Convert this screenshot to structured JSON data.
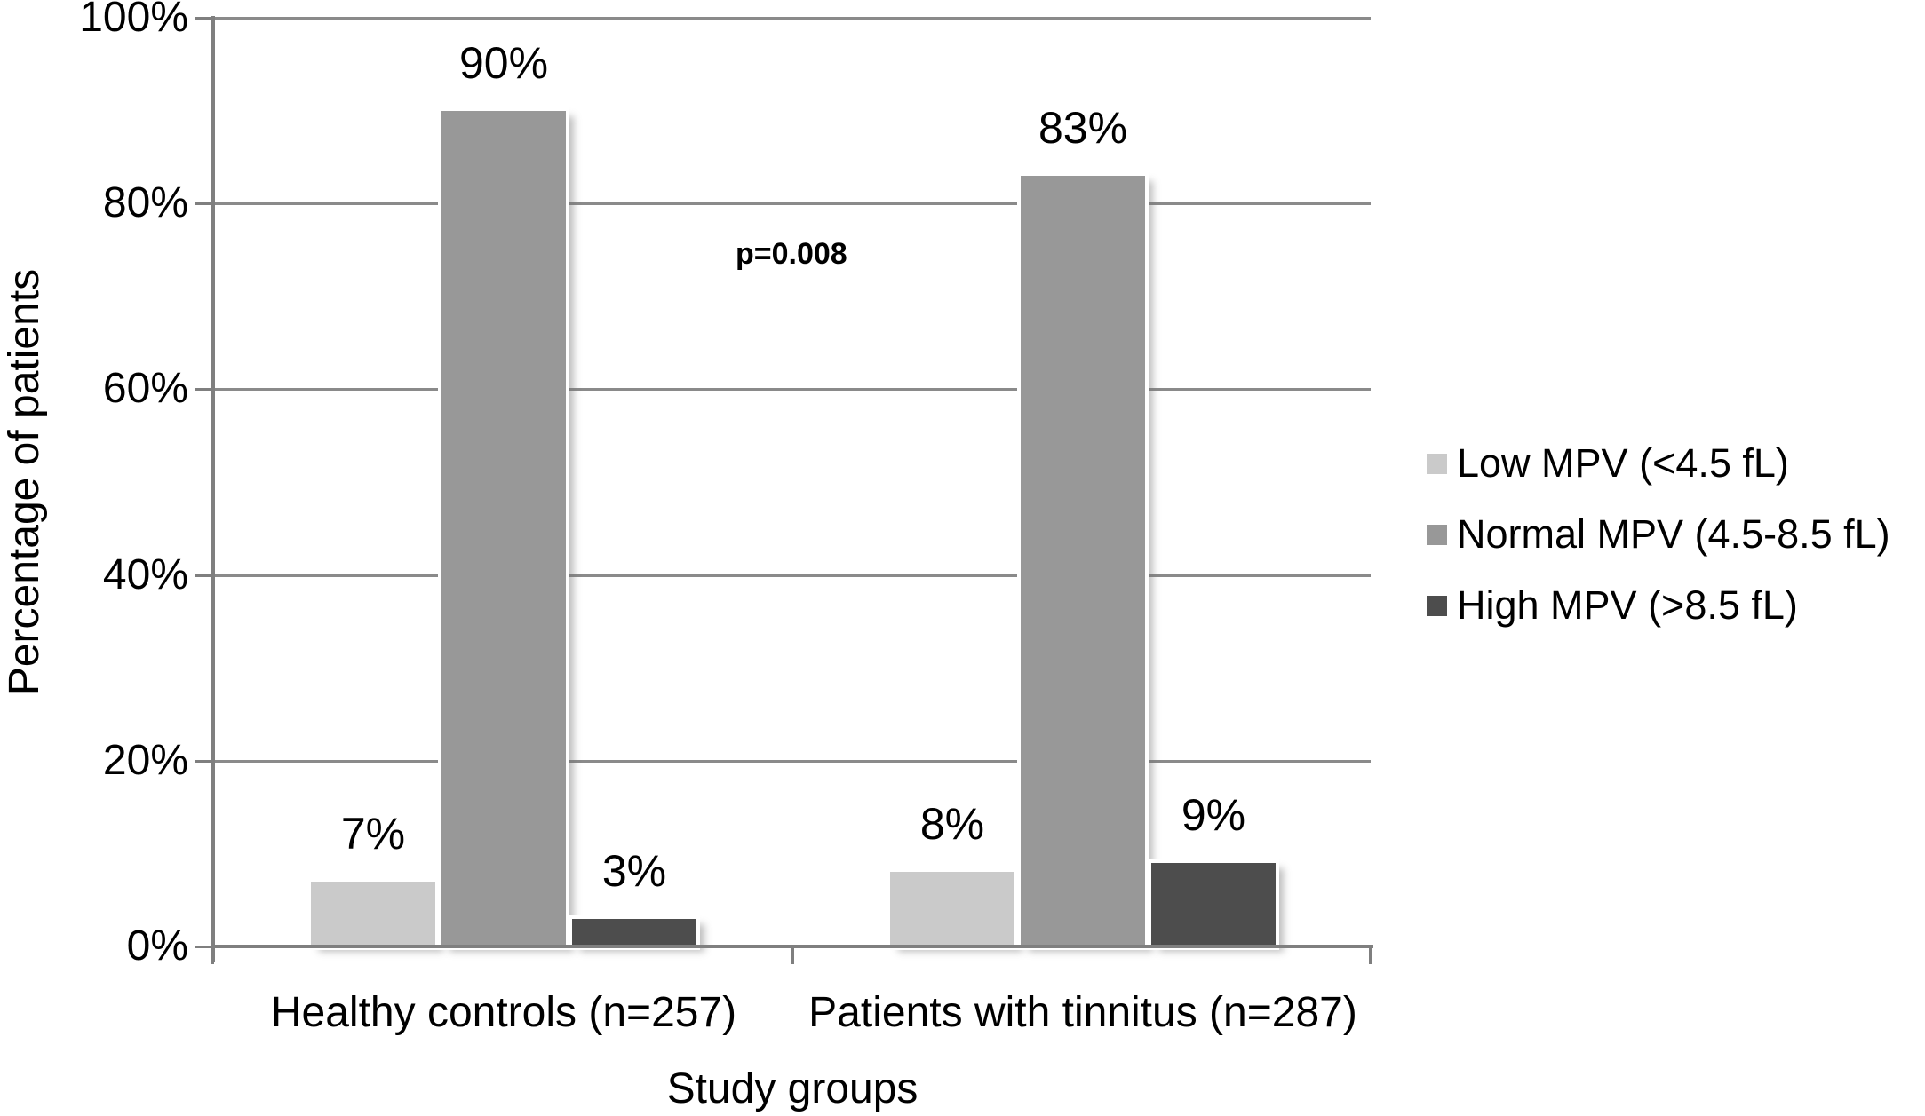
{
  "chart_data": {
    "type": "bar",
    "title": "",
    "xlabel": "Study groups",
    "ylabel": "Percentage of patients",
    "ylim": [
      0,
      100
    ],
    "ytick_step": 20,
    "ytick_labels": [
      "0%",
      "20%",
      "40%",
      "60%",
      "80%",
      "100%"
    ],
    "grid": true,
    "legend_position": "right",
    "annotation": "p=0.008",
    "categories": [
      "Healthy controls (n=257)",
      "Patients with tinnitus (n=287)"
    ],
    "series": [
      {
        "name": "Low MPV (<4.5 fL)",
        "color": "#cacaca",
        "values": [
          7,
          8
        ]
      },
      {
        "name": "Normal MPV (4.5-8.5 fL)",
        "color": "#989898",
        "values": [
          90,
          83
        ]
      },
      {
        "name": "High MPV (>8.5 fL)",
        "color": "#4d4d4d",
        "values": [
          3,
          9
        ]
      }
    ],
    "data_label_format": "percent",
    "data_labels": [
      [
        "7%",
        "90%",
        "3%"
      ],
      [
        "8%",
        "83%",
        "9%"
      ]
    ]
  }
}
